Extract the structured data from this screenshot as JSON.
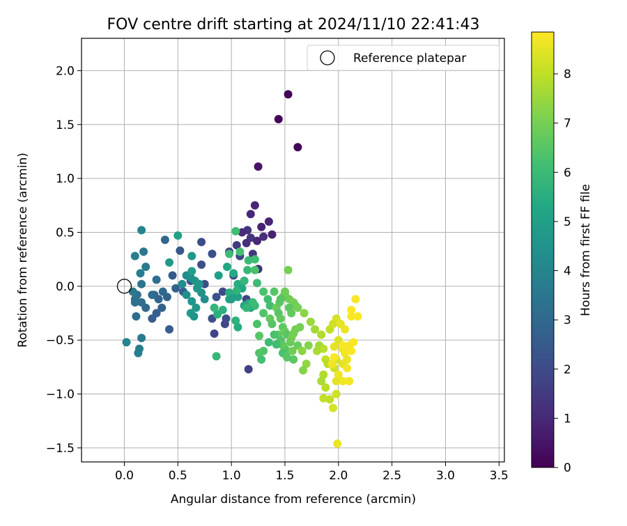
{
  "chart_data": {
    "type": "scatter",
    "title": "FOV centre drift starting at 2024/11/10 22:41:43",
    "xlabel": "Angular distance from reference (arcmin)",
    "ylabel": "Rotation from reference (arcmin)",
    "xlim": [
      -0.4,
      3.55
    ],
    "ylim": [
      -1.63,
      2.3
    ],
    "xticks": [
      0.0,
      0.5,
      1.0,
      1.5,
      2.0,
      2.5,
      3.0,
      3.5
    ],
    "xtick_labels": [
      "0.0",
      "0.5",
      "1.0",
      "1.5",
      "2.0",
      "2.5",
      "3.0",
      "3.5"
    ],
    "yticks": [
      -1.5,
      -1.0,
      -0.5,
      0.0,
      0.5,
      1.0,
      1.5,
      2.0
    ],
    "ytick_labels": [
      "−1.5",
      "−1.0",
      "−0.5",
      "0.0",
      "0.5",
      "1.0",
      "1.5",
      "2.0"
    ],
    "grid": true,
    "legend": {
      "position": "top-right",
      "entries": [
        {
          "label": "Reference platepar",
          "marker": "open-circle"
        }
      ]
    },
    "reference_point": {
      "x": 0.0,
      "y": 0.0
    },
    "colorbar": {
      "label": "Hours from first FF file",
      "min": 0,
      "max": 8.85,
      "ticks": [
        0,
        1,
        2,
        3,
        4,
        5,
        6,
        7,
        8
      ],
      "tick_labels": [
        "0",
        "1",
        "2",
        "3",
        "4",
        "5",
        "6",
        "7",
        "8"
      ],
      "colormap": "viridis"
    },
    "points": [
      [
        1.53,
        1.78,
        0.05
      ],
      [
        1.44,
        1.55,
        0.1
      ],
      [
        1.62,
        1.29,
        0.1
      ],
      [
        1.25,
        1.11,
        0.5
      ],
      [
        1.22,
        0.75,
        0.9
      ],
      [
        1.18,
        0.67,
        1.0
      ],
      [
        1.35,
        0.6,
        0.9
      ],
      [
        1.28,
        0.55,
        0.8
      ],
      [
        1.15,
        0.52,
        1.3
      ],
      [
        1.1,
        0.5,
        1.1
      ],
      [
        1.38,
        0.48,
        0.8
      ],
      [
        1.3,
        0.46,
        1.2
      ],
      [
        1.18,
        0.45,
        1.4
      ],
      [
        1.24,
        0.42,
        1.0
      ],
      [
        1.14,
        0.4,
        1.2
      ],
      [
        1.05,
        0.38,
        1.5
      ],
      [
        0.98,
        0.32,
        1.6
      ],
      [
        1.08,
        0.28,
        1.8
      ],
      [
        1.2,
        0.3,
        1.4
      ],
      [
        1.25,
        0.16,
        1.2
      ],
      [
        1.12,
        0.05,
        1.6
      ],
      [
        1.02,
        0.1,
        1.9
      ],
      [
        0.72,
        0.41,
        2.0
      ],
      [
        0.82,
        0.3,
        2.2
      ],
      [
        0.72,
        0.2,
        2.1
      ],
      [
        0.52,
        0.33,
        2.4
      ],
      [
        0.62,
        0.05,
        2.2
      ],
      [
        0.75,
        0.02,
        2.1
      ],
      [
        0.92,
        -0.05,
        2.0
      ],
      [
        0.86,
        -0.1,
        2.3
      ],
      [
        0.82,
        -0.3,
        2.1
      ],
      [
        0.95,
        -0.3,
        2.0
      ],
      [
        0.94,
        -0.35,
        1.9
      ],
      [
        0.84,
        -0.44,
        1.8
      ],
      [
        1.16,
        -0.77,
        1.7
      ],
      [
        1.14,
        -0.12,
        1.8
      ],
      [
        0.45,
        0.1,
        2.5
      ],
      [
        0.55,
        -0.05,
        2.6
      ],
      [
        0.38,
        0.43,
        2.9
      ],
      [
        0.48,
        -0.02,
        2.7
      ],
      [
        0.4,
        -0.1,
        2.8
      ],
      [
        0.28,
        -0.08,
        3.0
      ],
      [
        0.32,
        -0.12,
        2.9
      ],
      [
        0.35,
        -0.2,
        2.8
      ],
      [
        0.3,
        -0.25,
        2.7
      ],
      [
        0.26,
        -0.3,
        2.6
      ],
      [
        0.2,
        -0.2,
        3.0
      ],
      [
        0.16,
        -0.15,
        3.2
      ],
      [
        0.12,
        -0.08,
        3.3
      ],
      [
        0.1,
        -0.12,
        3.4
      ],
      [
        0.08,
        -0.05,
        3.5
      ],
      [
        0.1,
        -0.15,
        3.3
      ],
      [
        0.11,
        -0.28,
        3.1
      ],
      [
        0.16,
        0.02,
        3.4
      ],
      [
        0.2,
        0.18,
        3.6
      ],
      [
        0.15,
        0.12,
        3.7
      ],
      [
        0.18,
        0.32,
        3.5
      ],
      [
        0.1,
        0.28,
        3.8
      ],
      [
        0.16,
        0.52,
        4.0
      ],
      [
        0.3,
        0.06,
        3.2
      ],
      [
        0.36,
        -0.05,
        3.0
      ],
      [
        0.42,
        -0.4,
        2.6
      ],
      [
        0.16,
        -0.48,
        3.6
      ],
      [
        0.14,
        -0.58,
        3.8
      ],
      [
        0.13,
        -0.62,
        3.7
      ],
      [
        0.02,
        -0.52,
        4.0
      ],
      [
        0.26,
        -0.08,
        3.1
      ],
      [
        0.58,
        0.1,
        4.2
      ],
      [
        0.62,
        0.08,
        4.4
      ],
      [
        0.66,
        0.05,
        4.5
      ],
      [
        0.7,
        0.02,
        4.6
      ],
      [
        0.58,
        -0.08,
        4.4
      ],
      [
        0.63,
        -0.14,
        4.6
      ],
      [
        0.67,
        -0.2,
        4.7
      ],
      [
        0.62,
        -0.25,
        4.8
      ],
      [
        0.65,
        -0.28,
        4.5
      ],
      [
        0.72,
        -0.06,
        4.5
      ],
      [
        0.68,
        -0.02,
        4.6
      ],
      [
        0.75,
        -0.12,
        4.3
      ],
      [
        0.54,
        0.02,
        4.3
      ],
      [
        0.5,
        0.47,
        5.0
      ],
      [
        0.63,
        0.28,
        4.7
      ],
      [
        0.63,
        0.14,
        4.9
      ],
      [
        0.42,
        0.22,
        4.8
      ],
      [
        0.88,
        0.1,
        5.0
      ],
      [
        0.96,
        0.18,
        5.3
      ],
      [
        1.02,
        0.12,
        5.4
      ],
      [
        1.06,
        0.02,
        5.5
      ],
      [
        1.1,
        -0.02,
        5.2
      ],
      [
        1.0,
        -0.08,
        5.1
      ],
      [
        0.98,
        -0.12,
        5.3
      ],
      [
        1.06,
        -0.1,
        5.0
      ],
      [
        1.12,
        -0.18,
        5.2
      ],
      [
        1.16,
        -0.16,
        5.4
      ],
      [
        1.18,
        -0.2,
        5.3
      ],
      [
        0.92,
        -0.22,
        5.6
      ],
      [
        0.84,
        -0.2,
        5.8
      ],
      [
        0.87,
        -0.26,
        5.6
      ],
      [
        0.98,
        -0.06,
        5.5
      ],
      [
        1.04,
        -0.32,
        5.7
      ],
      [
        1.06,
        -0.38,
        5.5
      ],
      [
        0.86,
        -0.65,
        5.8
      ],
      [
        1.0,
        -0.12,
        4.9
      ],
      [
        1.05,
        -0.04,
        5.7
      ],
      [
        1.15,
        0.15,
        5.9
      ],
      [
        1.12,
        0.05,
        5.8
      ],
      [
        0.98,
        0.3,
        6.0
      ],
      [
        1.04,
        0.51,
        6.1
      ],
      [
        1.08,
        0.32,
        6.2
      ],
      [
        1.22,
        0.25,
        6.1
      ],
      [
        1.16,
        0.24,
        6.0
      ],
      [
        1.22,
        0.15,
        6.3
      ],
      [
        1.24,
        0.03,
        6.0
      ],
      [
        1.3,
        -0.05,
        6.3
      ],
      [
        1.34,
        -0.12,
        6.1
      ],
      [
        1.4,
        -0.05,
        6.5
      ],
      [
        1.36,
        -0.18,
        6.2
      ],
      [
        1.3,
        -0.25,
        6.4
      ],
      [
        1.22,
        -0.18,
        5.9
      ],
      [
        1.24,
        -0.35,
        6.3
      ],
      [
        1.26,
        -0.46,
        6.5
      ],
      [
        1.3,
        -0.6,
        6.4
      ],
      [
        1.26,
        -0.62,
        6.4
      ],
      [
        1.28,
        -0.68,
        6.2
      ],
      [
        1.2,
        -0.15,
        6.0
      ],
      [
        1.14,
        -0.2,
        5.8
      ],
      [
        1.36,
        -0.3,
        6.7
      ],
      [
        1.38,
        -0.35,
        6.5
      ],
      [
        1.42,
        -0.2,
        6.8
      ],
      [
        1.45,
        -0.15,
        6.6
      ],
      [
        1.48,
        -0.1,
        6.8
      ],
      [
        1.5,
        -0.08,
        6.7
      ],
      [
        1.54,
        -0.12,
        6.9
      ],
      [
        1.58,
        -0.15,
        7.0
      ],
      [
        1.6,
        -0.18,
        6.9
      ],
      [
        1.62,
        -0.2,
        7.0
      ],
      [
        1.44,
        -0.25,
        6.5
      ],
      [
        1.46,
        -0.3,
        6.7
      ],
      [
        1.48,
        -0.38,
        6.6
      ],
      [
        1.5,
        -0.42,
        6.8
      ],
      [
        1.52,
        -0.45,
        6.5
      ],
      [
        1.44,
        -0.45,
        6.7
      ],
      [
        1.46,
        -0.5,
        6.4
      ],
      [
        1.48,
        -0.55,
        6.6
      ],
      [
        1.5,
        -0.58,
        6.7
      ],
      [
        1.52,
        -0.6,
        6.5
      ],
      [
        1.55,
        -0.52,
        6.8
      ],
      [
        1.56,
        -0.48,
        6.9
      ],
      [
        1.58,
        -0.44,
        7.0
      ],
      [
        1.6,
        -0.4,
        7.0
      ],
      [
        1.57,
        -0.6,
        6.9
      ],
      [
        1.58,
        -0.68,
        6.6
      ],
      [
        1.62,
        -0.55,
        6.8
      ],
      [
        1.64,
        -0.38,
        7.0
      ],
      [
        1.5,
        -0.05,
        6.9
      ],
      [
        1.46,
        -0.12,
        6.5
      ],
      [
        1.53,
        0.15,
        7.0
      ],
      [
        1.4,
        -0.45,
        6.3
      ],
      [
        1.35,
        -0.52,
        6.0
      ],
      [
        1.42,
        -0.54,
        6.1
      ],
      [
        1.48,
        -0.62,
        6.3
      ],
      [
        1.52,
        -0.66,
        6.5
      ],
      [
        1.54,
        -0.2,
        6.6
      ],
      [
        1.56,
        -0.25,
        6.7
      ],
      [
        1.68,
        -0.25,
        7.3
      ],
      [
        1.74,
        -0.33,
        7.5
      ],
      [
        1.78,
        -0.4,
        7.6
      ],
      [
        1.72,
        -0.55,
        7.2
      ],
      [
        1.66,
        -0.6,
        7.3
      ],
      [
        1.7,
        -0.72,
        7.4
      ],
      [
        1.67,
        -0.78,
        7.2
      ],
      [
        1.82,
        -0.55,
        7.6
      ],
      [
        1.84,
        -0.45,
        7.8
      ],
      [
        1.86,
        -0.58,
        7.9
      ],
      [
        1.8,
        -0.6,
        7.7
      ],
      [
        1.88,
        -0.68,
        8.0
      ],
      [
        1.9,
        -0.72,
        7.9
      ],
      [
        1.86,
        -0.82,
        7.8
      ],
      [
        1.84,
        -0.88,
        7.7
      ],
      [
        1.88,
        -0.94,
        7.9
      ],
      [
        1.92,
        -1.05,
        8.0
      ],
      [
        1.86,
        -1.04,
        8.0
      ],
      [
        1.92,
        -0.4,
        8.0
      ],
      [
        1.95,
        -0.35,
        8.2
      ],
      [
        1.98,
        -0.3,
        8.3
      ],
      [
        2.02,
        -0.35,
        8.5
      ],
      [
        2.06,
        -0.4,
        8.6
      ],
      [
        2.0,
        -0.5,
        8.4
      ],
      [
        1.96,
        -0.56,
        8.5
      ],
      [
        2.04,
        -0.58,
        8.6
      ],
      [
        2.06,
        -0.62,
        8.7
      ],
      [
        2.08,
        -0.68,
        8.6
      ],
      [
        2.04,
        -0.72,
        8.5
      ],
      [
        1.98,
        -0.68,
        8.3
      ],
      [
        1.96,
        -0.76,
        8.2
      ],
      [
        2.0,
        -0.82,
        8.6
      ],
      [
        2.04,
        -0.88,
        8.7
      ],
      [
        1.98,
        -0.88,
        8.5
      ],
      [
        1.96,
        -0.66,
        8.8
      ],
      [
        1.94,
        -0.72,
        8.7
      ],
      [
        2.1,
        -0.55,
        8.7
      ],
      [
        2.12,
        -0.6,
        8.8
      ],
      [
        2.14,
        -0.52,
        8.8
      ],
      [
        2.1,
        -0.88,
        8.7
      ],
      [
        2.04,
        -0.55,
        8.8
      ],
      [
        2.08,
        -0.76,
        8.7
      ],
      [
        2.12,
        -0.28,
        8.8
      ],
      [
        2.12,
        -0.22,
        8.8
      ],
      [
        2.16,
        -0.12,
        8.8
      ],
      [
        2.18,
        -0.28,
        8.8
      ],
      [
        1.98,
        -1.0,
        8.2
      ],
      [
        1.95,
        -1.13,
        8.3
      ],
      [
        1.99,
        -1.46,
        8.6
      ]
    ]
  }
}
